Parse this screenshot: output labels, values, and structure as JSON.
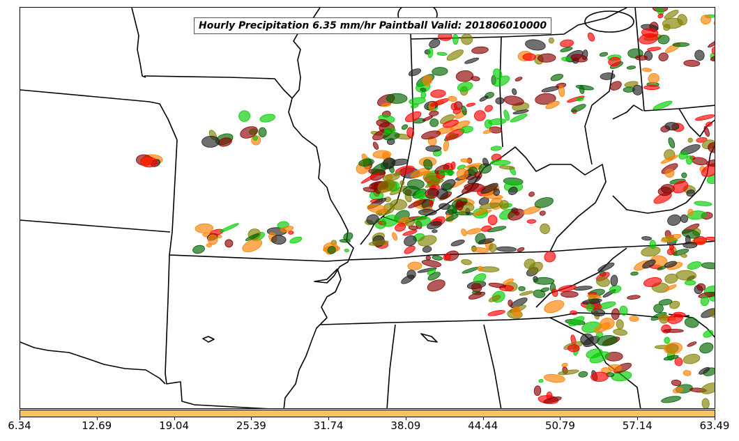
{
  "title": "Hourly Precipitation 6.35 mm/hr Paintball Valid: 201806010000",
  "colorbar": {
    "color": "#ffc060",
    "ticks": [
      "6.34",
      "12.69",
      "19.04",
      "25.39",
      "31.74",
      "38.09",
      "44.44",
      "50.79",
      "57.14",
      "63.49"
    ]
  },
  "map": {
    "boundary_color": "#000000",
    "paintball_colors": [
      "#00cc00",
      "#ff8000",
      "#ff0000",
      "#8b0000",
      "#808000",
      "#006400",
      "#222222"
    ]
  }
}
